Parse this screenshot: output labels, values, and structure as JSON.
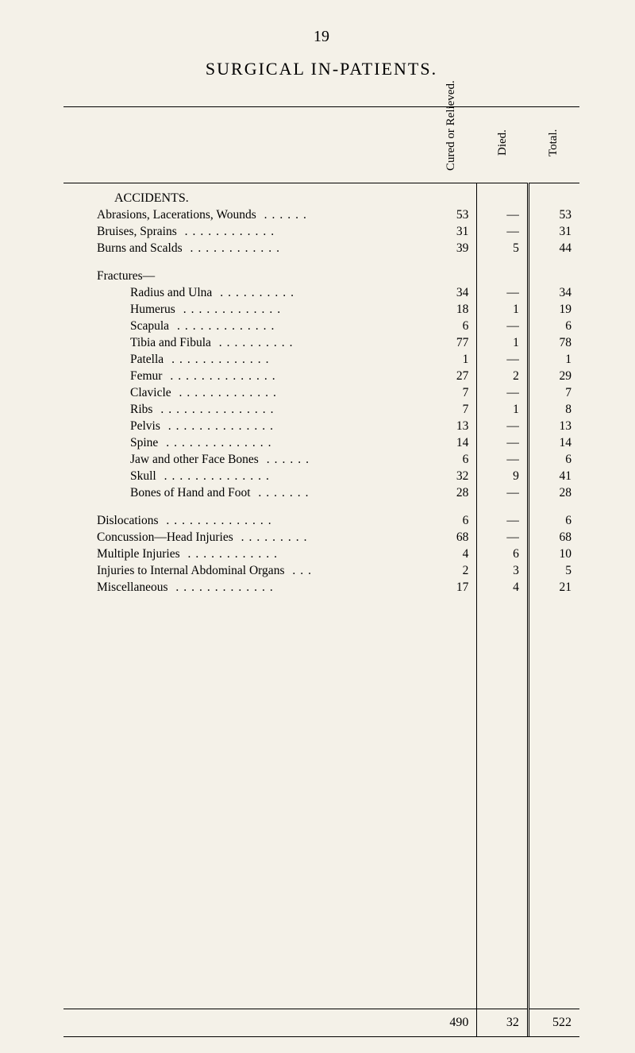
{
  "page_number": "19",
  "title": "SURGICAL IN-PATIENTS.",
  "headers": {
    "label": "",
    "col1": "Cured or Relieved.",
    "col2": "Died.",
    "col3": "Total."
  },
  "section_header": "ACCIDENTS.",
  "fractures_header": "Fractures—",
  "rows_main": [
    {
      "label": "Abrasions, Lacerations, Wounds",
      "c1": "53",
      "c2": "—",
      "c3": "53"
    },
    {
      "label": "Bruises, Sprains",
      "c1": "31",
      "c2": "—",
      "c3": "31"
    },
    {
      "label": "Burns and Scalds",
      "c1": "39",
      "c2": "5",
      "c3": "44"
    }
  ],
  "rows_fractures": [
    {
      "label": "Radius and Ulna",
      "c1": "34",
      "c2": "—",
      "c3": "34"
    },
    {
      "label": "Humerus",
      "c1": "18",
      "c2": "1",
      "c3": "19"
    },
    {
      "label": "Scapula",
      "c1": "6",
      "c2": "—",
      "c3": "6"
    },
    {
      "label": "Tibia and Fibula",
      "c1": "77",
      "c2": "1",
      "c3": "78"
    },
    {
      "label": "Patella",
      "c1": "1",
      "c2": "—",
      "c3": "1"
    },
    {
      "label": "Femur",
      "c1": "27",
      "c2": "2",
      "c3": "29"
    },
    {
      "label": "Clavicle",
      "c1": "7",
      "c2": "—",
      "c3": "7"
    },
    {
      "label": "Ribs",
      "c1": "7",
      "c2": "1",
      "c3": "8"
    },
    {
      "label": "Pelvis",
      "c1": "13",
      "c2": "—",
      "c3": "13"
    },
    {
      "label": "Spine",
      "c1": "14",
      "c2": "—",
      "c3": "14"
    },
    {
      "label": "Jaw and other Face Bones",
      "c1": "6",
      "c2": "—",
      "c3": "6"
    },
    {
      "label": "Skull",
      "c1": "32",
      "c2": "9",
      "c3": "41"
    },
    {
      "label": "Bones of Hand and Foot",
      "c1": "28",
      "c2": "—",
      "c3": "28"
    }
  ],
  "rows_other": [
    {
      "label": "Dislocations",
      "c1": "6",
      "c2": "—",
      "c3": "6"
    },
    {
      "label": "Concussion—Head Injuries",
      "c1": "68",
      "c2": "—",
      "c3": "68"
    },
    {
      "label": "Multiple Injuries",
      "c1": "4",
      "c2": "6",
      "c3": "10"
    },
    {
      "label": "Injuries to Internal Abdominal Organs",
      "c1": "2",
      "c2": "3",
      "c3": "5"
    },
    {
      "label": "Miscellaneous",
      "c1": "17",
      "c2": "4",
      "c3": "21"
    }
  ],
  "footer": {
    "c1": "490",
    "c2": "32",
    "c3": "522"
  }
}
